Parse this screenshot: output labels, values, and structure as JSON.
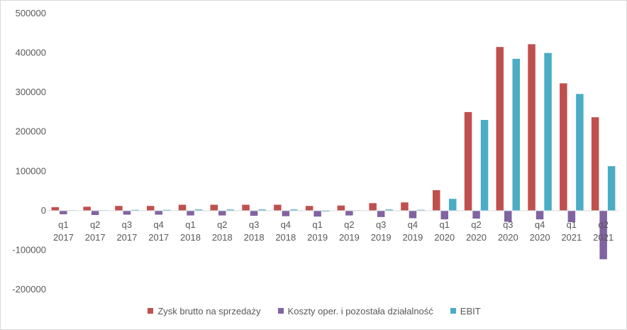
{
  "chart_data": {
    "type": "bar",
    "categories": [
      [
        "q1",
        "2017"
      ],
      [
        "q2",
        "2017"
      ],
      [
        "q3",
        "2017"
      ],
      [
        "q4",
        "2017"
      ],
      [
        "q1",
        "2018"
      ],
      [
        "q2",
        "2018"
      ],
      [
        "q3",
        "2018"
      ],
      [
        "q4",
        "2018"
      ],
      [
        "q1",
        "2019"
      ],
      [
        "q2",
        "2019"
      ],
      [
        "q3",
        "2019"
      ],
      [
        "q4",
        "2019"
      ],
      [
        "q1",
        "2020"
      ],
      [
        "q2",
        "2020"
      ],
      [
        "q3",
        "2020"
      ],
      [
        "q4",
        "2020"
      ],
      [
        "q1",
        "2021"
      ],
      [
        "q2",
        "2021"
      ]
    ],
    "series": [
      {
        "name": "Zysk brutto na sprzedaży",
        "color": "#c0504d",
        "values": [
          9000,
          10000,
          12000,
          12000,
          15000,
          15000,
          15000,
          15000,
          12000,
          13000,
          19000,
          21000,
          52000,
          250000,
          415000,
          422000,
          323000,
          237000
        ]
      },
      {
        "name": "Koszty oper. i pozostała działalność",
        "color": "#8064a2",
        "values": [
          -9000,
          -11000,
          -10000,
          -10000,
          -12000,
          -12000,
          -13000,
          -14000,
          -15000,
          -12000,
          -16000,
          -19000,
          -22000,
          -20000,
          -28000,
          -22000,
          -29000,
          -123000
        ]
      },
      {
        "name": "EBIT",
        "color": "#4bacc6",
        "values": [
          1000,
          1000,
          2000,
          2000,
          3000,
          3000,
          3000,
          3000,
          -2000,
          1000,
          3000,
          2000,
          30000,
          230000,
          385000,
          400000,
          296000,
          113000
        ]
      }
    ],
    "ylim": [
      -200000,
      500000
    ],
    "yticks": [
      -200000,
      -100000,
      0,
      100000,
      200000,
      300000,
      400000,
      500000
    ],
    "grid": false,
    "legend": "bottom"
  }
}
